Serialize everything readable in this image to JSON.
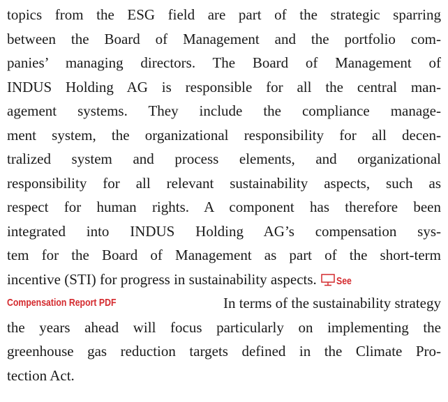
{
  "paragraph": {
    "lines": [
      "topics from the ESG field are part of the strategic sparring",
      "between the Board of Management and the portfolio com-",
      "panies’ managing directors. The Board of Management of",
      "INDUS Holding AG is responsible for all the central man-",
      "agement systems. They include the compliance manage-",
      "ment system, the organizational responsibility for all decen-",
      "tralized system and process elements, and organizational",
      "responsibility for all relevant sustainability aspects, such as",
      "respect for human rights. A component has therefore been",
      "integrated into INDUS Holding AG’s compensation sys-",
      "tem for the Board of Management as part of the short-term",
      "incentive (STI) for progress in sustainability aspects.",
      "In terms of the sustainability strategy",
      "the years ahead will focus particularly on implementing the",
      "greenhouse gas reduction targets defined in the Climate Pro-",
      "tection Act."
    ],
    "link": {
      "part1": "See",
      "part2": "Compensation Report PDF"
    }
  }
}
